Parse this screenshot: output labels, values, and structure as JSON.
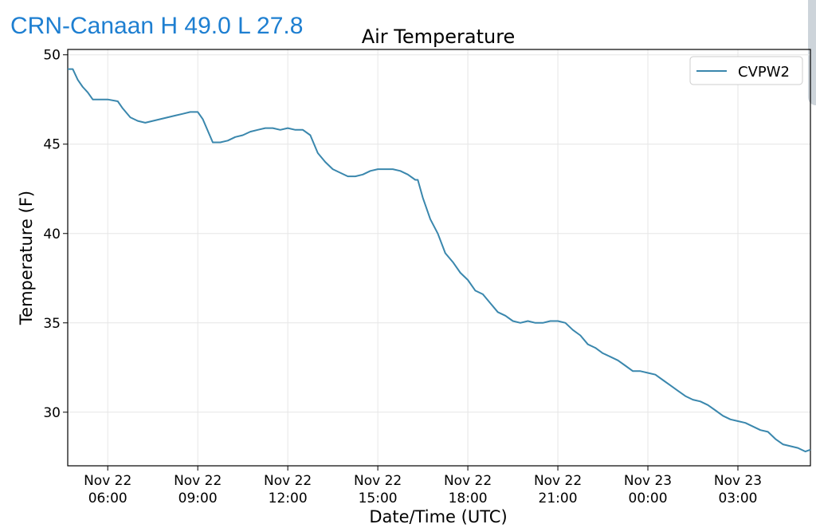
{
  "header": {
    "station_title": "CRN-Canaan H 49.0 L 27.8"
  },
  "colors": {
    "header_text": "#1e7fd1",
    "series_line": "#3a87ad",
    "grid": "#e6e6e6"
  },
  "chart_data": {
    "type": "line",
    "title": "Air Temperature",
    "xlabel": "Date/Time (UTC)",
    "ylabel": "Temperature (F)",
    "ylim": [
      27.0,
      50.3
    ],
    "xlim": [
      "2020-11-22T04:40",
      "2020-11-23T05:25"
    ],
    "grid": true,
    "legend": "top-right",
    "x_ticks": [
      {
        "x": "2020-11-22T06:00",
        "label": [
          "Nov 22",
          "06:00"
        ]
      },
      {
        "x": "2020-11-22T09:00",
        "label": [
          "Nov 22",
          "09:00"
        ]
      },
      {
        "x": "2020-11-22T12:00",
        "label": [
          "Nov 22",
          "12:00"
        ]
      },
      {
        "x": "2020-11-22T15:00",
        "label": [
          "Nov 22",
          "15:00"
        ]
      },
      {
        "x": "2020-11-22T18:00",
        "label": [
          "Nov 22",
          "18:00"
        ]
      },
      {
        "x": "2020-11-22T21:00",
        "label": [
          "Nov 22",
          "21:00"
        ]
      },
      {
        "x": "2020-11-23T00:00",
        "label": [
          "Nov 23",
          "00:00"
        ]
      },
      {
        "x": "2020-11-23T03:00",
        "label": [
          "Nov 23",
          "03:00"
        ]
      }
    ],
    "y_ticks": [
      30,
      35,
      40,
      45,
      50
    ],
    "series": [
      {
        "name": "CVPW2",
        "color": "#3a87ad",
        "x": [
          "2020-11-22T04:40",
          "2020-11-22T04:50",
          "2020-11-22T05:00",
          "2020-11-22T05:10",
          "2020-11-22T05:20",
          "2020-11-22T05:30",
          "2020-11-22T05:40",
          "2020-11-22T06:00",
          "2020-11-22T06:20",
          "2020-11-22T06:30",
          "2020-11-22T06:45",
          "2020-11-22T07:00",
          "2020-11-22T07:15",
          "2020-11-22T07:30",
          "2020-11-22T07:45",
          "2020-11-22T08:00",
          "2020-11-22T08:15",
          "2020-11-22T08:30",
          "2020-11-22T08:45",
          "2020-11-22T08:55",
          "2020-11-22T09:00",
          "2020-11-22T09:10",
          "2020-11-22T09:30",
          "2020-11-22T09:45",
          "2020-11-22T10:00",
          "2020-11-22T10:15",
          "2020-11-22T10:30",
          "2020-11-22T10:45",
          "2020-11-22T11:00",
          "2020-11-22T11:15",
          "2020-11-22T11:30",
          "2020-11-22T11:45",
          "2020-11-22T12:00",
          "2020-11-22T12:15",
          "2020-11-22T12:30",
          "2020-11-22T12:45",
          "2020-11-22T13:00",
          "2020-11-22T13:15",
          "2020-11-22T13:30",
          "2020-11-22T13:45",
          "2020-11-22T14:00",
          "2020-11-22T14:15",
          "2020-11-22T14:30",
          "2020-11-22T14:45",
          "2020-11-22T15:00",
          "2020-11-22T15:15",
          "2020-11-22T15:30",
          "2020-11-22T15:45",
          "2020-11-22T16:00",
          "2020-11-22T16:15",
          "2020-11-22T16:20",
          "2020-11-22T16:30",
          "2020-11-22T16:45",
          "2020-11-22T17:00",
          "2020-11-22T17:15",
          "2020-11-22T17:30",
          "2020-11-22T17:45",
          "2020-11-22T18:00",
          "2020-11-22T18:15",
          "2020-11-22T18:30",
          "2020-11-22T18:45",
          "2020-11-22T19:00",
          "2020-11-22T19:15",
          "2020-11-22T19:30",
          "2020-11-22T19:45",
          "2020-11-22T20:00",
          "2020-11-22T20:15",
          "2020-11-22T20:30",
          "2020-11-22T20:45",
          "2020-11-22T21:00",
          "2020-11-22T21:15",
          "2020-11-22T21:30",
          "2020-11-22T21:45",
          "2020-11-22T22:00",
          "2020-11-22T22:15",
          "2020-11-22T22:30",
          "2020-11-22T22:45",
          "2020-11-22T23:00",
          "2020-11-22T23:15",
          "2020-11-22T23:30",
          "2020-11-22T23:45",
          "2020-11-23T00:00",
          "2020-11-23T00:15",
          "2020-11-23T00:30",
          "2020-11-23T00:45",
          "2020-11-23T01:00",
          "2020-11-23T01:15",
          "2020-11-23T01:30",
          "2020-11-23T01:45",
          "2020-11-23T02:00",
          "2020-11-23T02:15",
          "2020-11-23T02:30",
          "2020-11-23T02:45",
          "2020-11-23T03:00",
          "2020-11-23T03:15",
          "2020-11-23T03:30",
          "2020-11-23T03:45",
          "2020-11-23T04:00",
          "2020-11-23T04:15",
          "2020-11-23T04:30",
          "2020-11-23T04:45",
          "2020-11-23T05:00",
          "2020-11-23T05:15",
          "2020-11-23T05:25"
        ],
        "values": [
          49.2,
          49.2,
          48.6,
          48.2,
          47.9,
          47.5,
          47.5,
          47.5,
          47.4,
          47.0,
          46.5,
          46.3,
          46.2,
          46.3,
          46.4,
          46.5,
          46.6,
          46.7,
          46.8,
          46.8,
          46.8,
          46.4,
          45.1,
          45.1,
          45.2,
          45.4,
          45.5,
          45.7,
          45.8,
          45.9,
          45.9,
          45.8,
          45.9,
          45.8,
          45.8,
          45.5,
          44.5,
          44.0,
          43.6,
          43.4,
          43.2,
          43.2,
          43.3,
          43.5,
          43.6,
          43.6,
          43.6,
          43.5,
          43.3,
          43.0,
          43.0,
          42.0,
          40.8,
          40.0,
          38.9,
          38.4,
          37.8,
          37.4,
          36.8,
          36.6,
          36.1,
          35.6,
          35.4,
          35.1,
          35.0,
          35.1,
          35.0,
          35.0,
          35.1,
          35.1,
          35.0,
          34.6,
          34.3,
          33.8,
          33.6,
          33.3,
          33.1,
          32.9,
          32.6,
          32.3,
          32.3,
          32.2,
          32.1,
          31.8,
          31.5,
          31.2,
          30.9,
          30.7,
          30.6,
          30.4,
          30.1,
          29.8,
          29.6,
          29.5,
          29.4,
          29.2,
          29.0,
          28.9,
          28.5,
          28.2,
          28.1,
          28.0,
          27.8,
          27.9
        ]
      }
    ]
  }
}
